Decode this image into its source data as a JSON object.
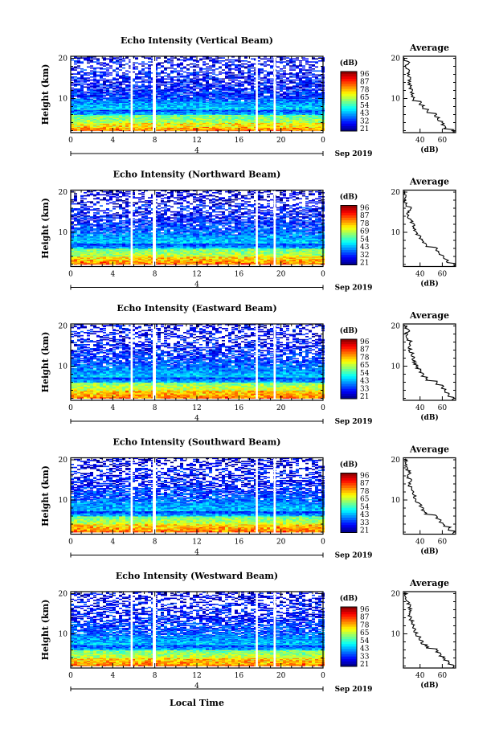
{
  "figure": {
    "xlabel": "Local Time",
    "height_label": "Height (km)",
    "date_label": "Sep 2019",
    "day_label": "4",
    "colorbar_unit": "(dB)",
    "colorbar_ticks": [
      "96",
      "87",
      "78",
      "65",
      "54",
      "43",
      "32",
      "21"
    ],
    "avg_title": "Average",
    "avg_xlabel": "(dB)"
  },
  "chart_data": [
    {
      "type": "heatmap",
      "title": "Echo Intensity (Vertical Beam)",
      "xlabel": "",
      "ylabel": "Height (km)",
      "x_ticks": [
        "0",
        "4",
        "8",
        "12",
        "16",
        "20",
        "0"
      ],
      "y_ticks": [
        "10",
        "20"
      ],
      "xlim": [
        0,
        24
      ],
      "ylim": [
        1.5,
        20.5
      ],
      "colorbar_ticks": [
        "96",
        "87",
        "78",
        "65",
        "54",
        "43",
        "32",
        "21"
      ],
      "colorbar_range": [
        21,
        96
      ],
      "data_gaps_hours": [
        [
          5.7,
          5.9
        ],
        [
          7.8,
          8.1
        ],
        [
          17.6,
          17.8
        ],
        [
          19.3,
          19.5
        ]
      ],
      "profile": {
        "title": "Average",
        "xlabel": "(dB)",
        "x_ticks": [
          "40",
          "60"
        ],
        "y_ticks": [
          "10",
          "20"
        ],
        "xlim": [
          25,
          72
        ],
        "ylim": [
          1.5,
          20.5
        ],
        "height_km": [
          2,
          3,
          4,
          5,
          6,
          7,
          8,
          9,
          10,
          11,
          12,
          13,
          14,
          15,
          16,
          17,
          18,
          19,
          20
        ],
        "intensity_db": [
          70,
          62,
          60,
          57,
          54,
          47,
          43,
          40,
          34,
          33,
          32,
          31,
          30,
          30,
          30,
          31,
          28,
          30,
          26
        ]
      }
    },
    {
      "type": "heatmap",
      "title": "Echo Intensity (Northward Beam)",
      "xlabel": "",
      "ylabel": "Height (km)",
      "x_ticks": [
        "0",
        "4",
        "8",
        "12",
        "16",
        "20",
        "0"
      ],
      "y_ticks": [
        "10",
        "20"
      ],
      "xlim": [
        0,
        24
      ],
      "ylim": [
        1.5,
        20.5
      ],
      "colorbar_ticks": [
        "96",
        "87",
        "78",
        "69",
        "54",
        "43",
        "32",
        "21"
      ],
      "colorbar_range": [
        21,
        96
      ],
      "data_gaps_hours": [
        [
          5.7,
          5.9
        ],
        [
          7.8,
          8.1
        ],
        [
          17.6,
          17.8
        ],
        [
          19.3,
          19.5
        ]
      ],
      "profile": {
        "title": "Average",
        "xlabel": "(dB)",
        "x_ticks": [
          "40",
          "60"
        ],
        "y_ticks": [
          "10",
          "20"
        ],
        "xlim": [
          25,
          72
        ],
        "ylim": [
          1.5,
          20.5
        ],
        "height_km": [
          2,
          3,
          4,
          5,
          6,
          7,
          8,
          9,
          10,
          11,
          12,
          13,
          14,
          15,
          16,
          17,
          18,
          19,
          20
        ],
        "intensity_db": [
          70,
          65,
          62,
          58,
          55,
          46,
          43,
          40,
          37,
          35,
          34,
          32,
          30,
          29,
          32,
          28,
          26,
          27,
          26
        ]
      }
    },
    {
      "type": "heatmap",
      "title": "Echo Intensity (Eastward Beam)",
      "xlabel": "",
      "ylabel": "Height (km)",
      "x_ticks": [
        "0",
        "4",
        "8",
        "12",
        "16",
        "20",
        "0"
      ],
      "y_ticks": [
        "10",
        "20"
      ],
      "xlim": [
        0,
        24
      ],
      "ylim": [
        1.5,
        20.5
      ],
      "colorbar_ticks": [
        "96",
        "87",
        "78",
        "65",
        "54",
        "43",
        "33",
        "21"
      ],
      "colorbar_range": [
        21,
        96
      ],
      "data_gaps_hours": [
        [
          5.7,
          5.9
        ],
        [
          7.8,
          8.1
        ],
        [
          17.6,
          17.8
        ],
        [
          19.3,
          19.5
        ]
      ],
      "profile": {
        "title": "Average",
        "xlabel": "(dB)",
        "x_ticks": [
          "40",
          "60"
        ],
        "y_ticks": [
          "10",
          "20"
        ],
        "xlim": [
          25,
          72
        ],
        "ylim": [
          1.5,
          20.5
        ],
        "height_km": [
          2,
          3,
          4,
          5,
          6,
          7,
          8,
          9,
          10,
          11,
          12,
          13,
          14,
          15,
          16,
          17,
          18,
          19,
          20
        ],
        "intensity_db": [
          70,
          66,
          63,
          60,
          55,
          46,
          42,
          40,
          37,
          35,
          34,
          33,
          31,
          30,
          31,
          29,
          28,
          30,
          27
        ]
      }
    },
    {
      "type": "heatmap",
      "title": "Echo Intensity (Southward Beam)",
      "xlabel": "",
      "ylabel": "Height (km)",
      "x_ticks": [
        "0",
        "4",
        "8",
        "12",
        "16",
        "20",
        "0"
      ],
      "y_ticks": [
        "10",
        "20"
      ],
      "xlim": [
        0,
        24
      ],
      "ylim": [
        1.5,
        20.5
      ],
      "colorbar_ticks": [
        "96",
        "87",
        "78",
        "65",
        "54",
        "43",
        "33",
        "21"
      ],
      "colorbar_range": [
        21,
        96
      ],
      "data_gaps_hours": [
        [
          5.7,
          5.9
        ],
        [
          7.8,
          8.1
        ],
        [
          17.6,
          17.8
        ],
        [
          19.3,
          19.5
        ]
      ],
      "profile": {
        "title": "Average",
        "xlabel": "(dB)",
        "x_ticks": [
          "40",
          "60"
        ],
        "y_ticks": [
          "10",
          "20"
        ],
        "xlim": [
          25,
          72
        ],
        "ylim": [
          1.5,
          20.5
        ],
        "height_km": [
          2,
          3,
          4,
          5,
          6,
          7,
          8,
          9,
          10,
          11,
          12,
          13,
          14,
          15,
          16,
          17,
          18,
          19,
          20
        ],
        "intensity_db": [
          70,
          66,
          62,
          58,
          55,
          45,
          42,
          40,
          37,
          35,
          34,
          33,
          30,
          32,
          29,
          31,
          28,
          27,
          27
        ]
      }
    },
    {
      "type": "heatmap",
      "title": "Echo Intensity (Westward Beam)",
      "xlabel": "Local Time",
      "ylabel": "Height (km)",
      "x_ticks": [
        "0",
        "4",
        "8",
        "12",
        "16",
        "20",
        "0"
      ],
      "y_ticks": [
        "10",
        "20"
      ],
      "xlim": [
        0,
        24
      ],
      "ylim": [
        1.5,
        20.5
      ],
      "colorbar_ticks": [
        "96",
        "87",
        "78",
        "65",
        "54",
        "43",
        "33",
        "21"
      ],
      "colorbar_range": [
        21,
        96
      ],
      "data_gaps_hours": [
        [
          5.7,
          5.9
        ],
        [
          7.8,
          8.1
        ],
        [
          17.6,
          17.8
        ],
        [
          19.3,
          19.5
        ]
      ],
      "profile": {
        "title": "Average",
        "xlabel": "(dB)",
        "x_ticks": [
          "40",
          "60"
        ],
        "y_ticks": [
          "10",
          "20"
        ],
        "xlim": [
          25,
          72
        ],
        "ylim": [
          1.5,
          20.5
        ],
        "height_km": [
          2,
          3,
          4,
          5,
          6,
          7,
          8,
          9,
          10,
          11,
          12,
          13,
          14,
          15,
          16,
          17,
          18,
          19,
          20
        ],
        "intensity_db": [
          70,
          66,
          62,
          58,
          55,
          46,
          42,
          40,
          37,
          35,
          34,
          33,
          31,
          30,
          31,
          30,
          29,
          28,
          27
        ]
      }
    }
  ]
}
